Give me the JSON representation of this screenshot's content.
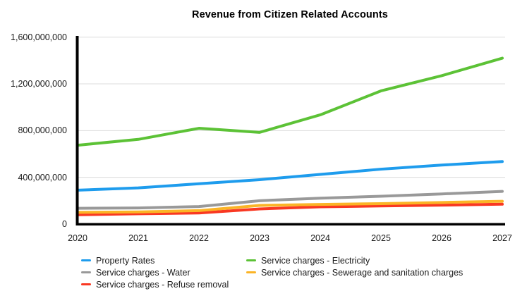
{
  "chart_data": {
    "type": "line",
    "title": "Revenue from Citizen Related Accounts",
    "x": [
      2020,
      2021,
      2022,
      2023,
      2024,
      2025,
      2026,
      2027
    ],
    "series": [
      {
        "name": "Property Rates",
        "color": "#1E9CED",
        "values": [
          290000000,
          310000000,
          345000000,
          380000000,
          425000000,
          470000000,
          505000000,
          535000000
        ]
      },
      {
        "name": "Service charges - Water",
        "color": "#999999",
        "values": [
          135000000,
          138000000,
          150000000,
          200000000,
          222000000,
          238000000,
          258000000,
          280000000
        ]
      },
      {
        "name": "Service charges - Refuse removal",
        "color": "#F93822",
        "values": [
          80000000,
          88000000,
          95000000,
          130000000,
          148000000,
          155000000,
          162000000,
          170000000
        ]
      },
      {
        "name": "Service charges - Electricity",
        "color": "#5CC236",
        "values": [
          675000000,
          725000000,
          820000000,
          785000000,
          935000000,
          1140000000,
          1270000000,
          1420000000
        ]
      },
      {
        "name": "Service charges - Sewerage and sanitation charges",
        "color": "#FBB426",
        "values": [
          100000000,
          104000000,
          115000000,
          160000000,
          168000000,
          175000000,
          185000000,
          195000000
        ]
      }
    ],
    "draw_order": [
      1,
      2,
      4,
      0,
      3
    ],
    "ylim": [
      0,
      1600000000
    ],
    "y_ticks": [
      {
        "label": "0",
        "value": 0
      },
      {
        "label": "400,000,000",
        "value": 400000000
      },
      {
        "label": "800,000,000",
        "value": 800000000
      },
      {
        "label": "1,200,000,000",
        "value": 1200000000
      },
      {
        "label": "1,600,000,000",
        "value": 1600000000
      }
    ],
    "grid": true,
    "legend_position": "bottom",
    "legend_columns": [
      [
        0,
        1,
        2
      ],
      [
        3,
        4
      ]
    ]
  },
  "style": {
    "grid_color": "#DCDCDC",
    "axis_color": "#000000",
    "text_color": "#1A1A1A",
    "background": "#FFFFFF"
  }
}
